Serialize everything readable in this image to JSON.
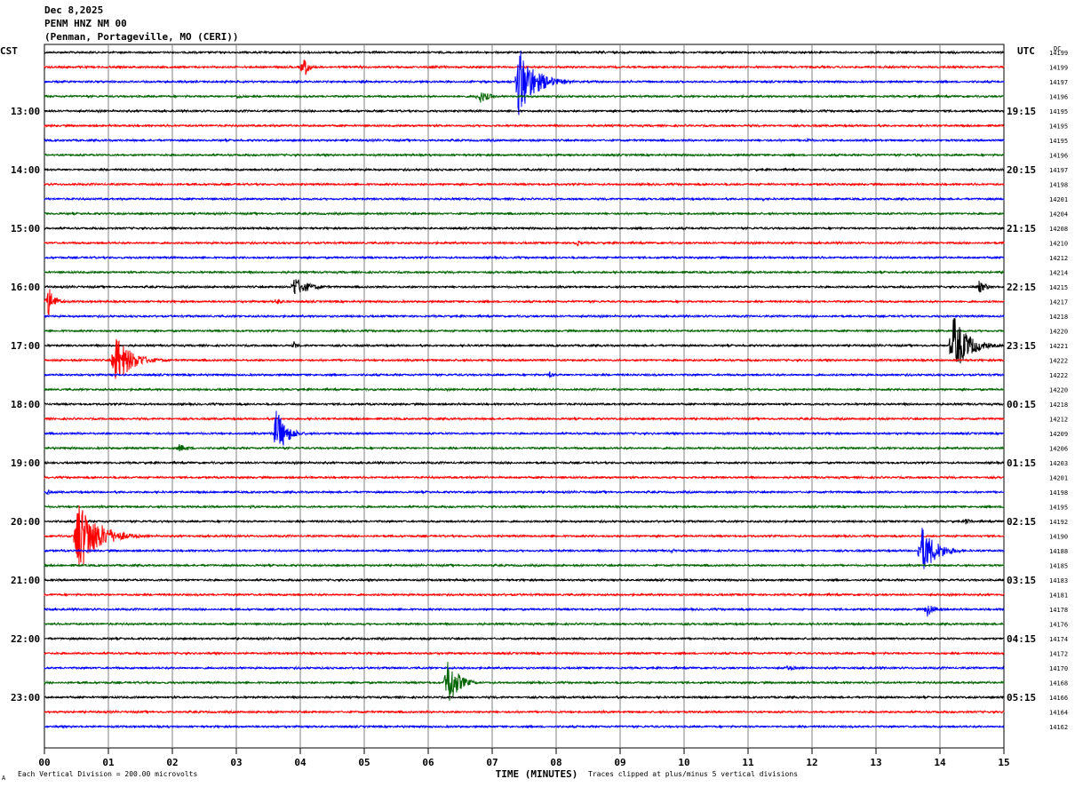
{
  "header": {
    "date": "Dec 8,2025",
    "station": "PENM HNZ NM 00",
    "location": "(Penman, Portageville, MO (CERI))",
    "left_tz": "CST",
    "right_tz": "UTC",
    "dc_label": "DC"
  },
  "footer": {
    "scale_note": "Each Vertical Division =  200.00 microvolts",
    "clip_note": "Traces clipped at plus/minus 5 vertical divisions",
    "corner_mark": "A"
  },
  "chart_data": {
    "type": "line",
    "title": "PENM HNZ NM 00",
    "xlabel": "TIME (MINUTES)",
    "xlim": [
      0,
      15
    ],
    "x_ticks": [
      "00",
      "01",
      "02",
      "03",
      "04",
      "05",
      "06",
      "07",
      "08",
      "09",
      "10",
      "11",
      "12",
      "13",
      "14",
      "15"
    ],
    "trace_colors": [
      "#000000",
      "#ff0000",
      "#0000ff",
      "#006400"
    ],
    "left_hour_labels": [
      "13:00",
      "14:00",
      "15:00",
      "16:00",
      "17:00",
      "18:00",
      "19:00",
      "20:00",
      "21:00",
      "22:00",
      "23:00"
    ],
    "right_hour_labels": [
      "19:15",
      "20:15",
      "21:15",
      "22:15",
      "23:15",
      "00:15",
      "01:15",
      "02:15",
      "03:15",
      "04:15",
      "05:15"
    ],
    "hour_label_trace_index": [
      4,
      8,
      12,
      16,
      20,
      24,
      28,
      32,
      36,
      40,
      44
    ],
    "dc_offsets": [
      "14199",
      "14199",
      "14197",
      "14196",
      "14195",
      "14195",
      "14195",
      "14196",
      "14197",
      "14198",
      "14201",
      "14204",
      "14208",
      "14210",
      "14212",
      "14214",
      "14215",
      "14217",
      "14218",
      "14220",
      "14221",
      "14222",
      "14222",
      "14220",
      "14218",
      "14212",
      "14209",
      "14206",
      "14203",
      "14201",
      "14198",
      "14195",
      "14192",
      "14190",
      "14188",
      "14185",
      "14183",
      "14181",
      "14178",
      "14176",
      "14174",
      "14172",
      "14170",
      "14168",
      "14166",
      "14164",
      "14162"
    ],
    "events": [
      {
        "trace": 1,
        "minute": 4.05,
        "amplitude": 14,
        "duration": 0.3
      },
      {
        "trace": 2,
        "minute": 7.4,
        "amplitude": 42,
        "duration": 1.0
      },
      {
        "trace": 3,
        "minute": 6.8,
        "amplitude": 8,
        "duration": 0.6
      },
      {
        "trace": 3,
        "minute": 3.0,
        "amplitude": 3,
        "duration": 0.5
      },
      {
        "trace": 16,
        "minute": 3.9,
        "amplitude": 12,
        "duration": 0.9
      },
      {
        "trace": 16,
        "minute": 14.6,
        "amplitude": 8,
        "duration": 0.5
      },
      {
        "trace": 17,
        "minute": 0.05,
        "amplitude": 20,
        "duration": 0.4
      },
      {
        "trace": 17,
        "minute": 3.6,
        "amplitude": 4,
        "duration": 0.6
      },
      {
        "trace": 20,
        "minute": 14.2,
        "amplitude": 36,
        "duration": 0.9
      },
      {
        "trace": 20,
        "minute": 3.9,
        "amplitude": 6,
        "duration": 0.2
      },
      {
        "trace": 21,
        "minute": 1.1,
        "amplitude": 30,
        "duration": 1.0
      },
      {
        "trace": 22,
        "minute": 7.9,
        "amplitude": 4,
        "duration": 0.3
      },
      {
        "trace": 26,
        "minute": 3.6,
        "amplitude": 34,
        "duration": 0.6
      },
      {
        "trace": 27,
        "minute": 2.1,
        "amplitude": 5,
        "duration": 0.6
      },
      {
        "trace": 30,
        "minute": 0.05,
        "amplitude": 6,
        "duration": 0.1
      },
      {
        "trace": 31,
        "minute": 3.2,
        "amplitude": 3,
        "duration": 0.4
      },
      {
        "trace": 32,
        "minute": 14.4,
        "amplitude": 4,
        "duration": 0.4
      },
      {
        "trace": 33,
        "minute": 0.5,
        "amplitude": 48,
        "duration": 1.2
      },
      {
        "trace": 34,
        "minute": 13.7,
        "amplitude": 30,
        "duration": 0.9
      },
      {
        "trace": 34,
        "minute": 9.8,
        "amplitude": 3,
        "duration": 0.2
      },
      {
        "trace": 38,
        "minute": 13.8,
        "amplitude": 9,
        "duration": 0.5
      },
      {
        "trace": 42,
        "minute": 11.6,
        "amplitude": 3,
        "duration": 0.9
      },
      {
        "trace": 43,
        "minute": 6.3,
        "amplitude": 32,
        "duration": 0.6
      },
      {
        "trace": 13,
        "minute": 8.3,
        "amplitude": 5,
        "duration": 0.3
      },
      {
        "trace": 10,
        "minute": 11.2,
        "amplitude": 3,
        "duration": 0.4
      },
      {
        "trace": 6,
        "minute": 11.9,
        "amplitude": 3,
        "duration": 0.4
      },
      {
        "trace": 7,
        "minute": 13.6,
        "amplitude": 3,
        "duration": 0.5
      }
    ]
  }
}
